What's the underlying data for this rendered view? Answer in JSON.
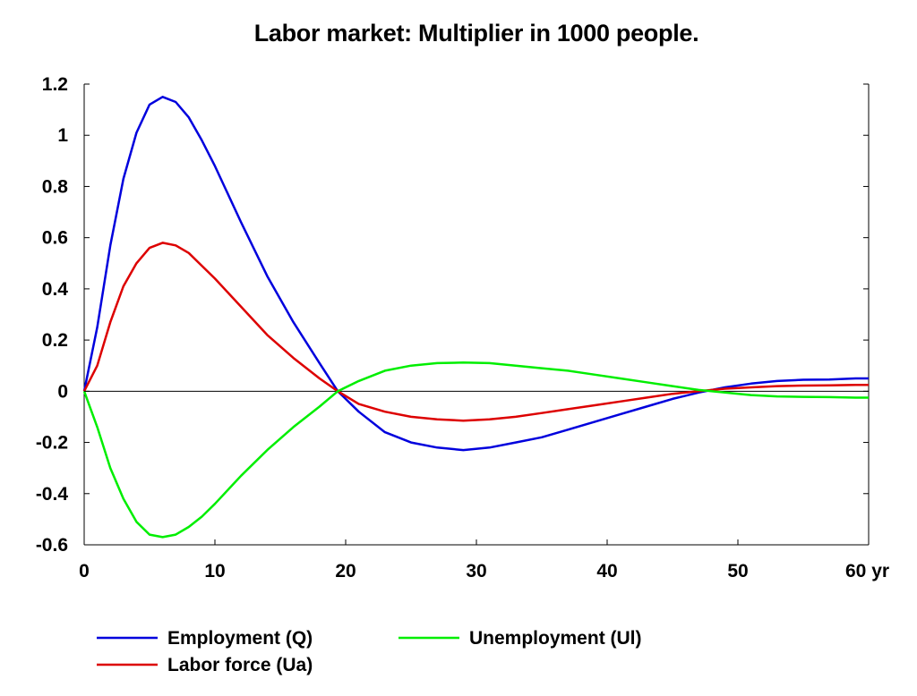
{
  "chart_data": {
    "type": "line",
    "title": "Labor market: Multiplier in 1000 people.",
    "xlabel": "",
    "ylabel": "",
    "x_unit_label": "yr",
    "xlim": [
      0,
      60
    ],
    "ylim": [
      -0.6,
      1.2
    ],
    "x_ticks": [
      0,
      10,
      20,
      30,
      40,
      50,
      60
    ],
    "x_tick_labels": [
      "0",
      "10",
      "20",
      "30",
      "40",
      "50",
      "60 yr"
    ],
    "y_ticks": [
      -0.6,
      -0.4,
      -0.2,
      0,
      0.2,
      0.4,
      0.6,
      0.8,
      1.0,
      1.2
    ],
    "y_tick_labels": [
      "-0.6",
      "-0.4",
      "-0.2",
      "0",
      "0.2",
      "0.4",
      "0.6",
      "0.8",
      "1",
      "1.2"
    ],
    "grid": false,
    "zero_line": true,
    "legend_position": "bottom",
    "series": [
      {
        "name": "Employment (Q)",
        "color": "#0000dd",
        "x": [
          0,
          1,
          2,
          3,
          4,
          5,
          6,
          7,
          8,
          9,
          10,
          12,
          14,
          16,
          18,
          19.4,
          21,
          23,
          25,
          27,
          29,
          31,
          33,
          35,
          37,
          39,
          41,
          43,
          45,
          47,
          49,
          51,
          53,
          55,
          57,
          59,
          60
        ],
        "values": [
          0,
          0.25,
          0.57,
          0.83,
          1.01,
          1.12,
          1.15,
          1.13,
          1.07,
          0.98,
          0.88,
          0.66,
          0.45,
          0.27,
          0.11,
          0.0,
          -0.08,
          -0.16,
          -0.2,
          -0.22,
          -0.23,
          -0.22,
          -0.2,
          -0.18,
          -0.15,
          -0.12,
          -0.09,
          -0.06,
          -0.03,
          -0.005,
          0.015,
          0.03,
          0.04,
          0.045,
          0.046,
          0.05,
          0.05
        ]
      },
      {
        "name": "Labor force (Ua)",
        "color": "#dd0000",
        "x": [
          0,
          1,
          2,
          3,
          4,
          5,
          6,
          7,
          8,
          9,
          10,
          12,
          14,
          16,
          18,
          19.4,
          21,
          23,
          25,
          27,
          29,
          31,
          33,
          35,
          37,
          39,
          41,
          43,
          45,
          47,
          49,
          51,
          53,
          55,
          57,
          59,
          60
        ],
        "values": [
          0,
          0.1,
          0.27,
          0.41,
          0.5,
          0.56,
          0.58,
          0.57,
          0.54,
          0.49,
          0.44,
          0.33,
          0.22,
          0.13,
          0.05,
          0.0,
          -0.05,
          -0.08,
          -0.1,
          -0.11,
          -0.115,
          -0.11,
          -0.1,
          -0.085,
          -0.07,
          -0.055,
          -0.04,
          -0.025,
          -0.01,
          0.0,
          0.01,
          0.015,
          0.02,
          0.022,
          0.023,
          0.025,
          0.025
        ]
      },
      {
        "name": "Unemployment (Ul)",
        "color": "#00ee00",
        "x": [
          0,
          1,
          2,
          3,
          4,
          5,
          6,
          7,
          8,
          9,
          10,
          12,
          14,
          16,
          18,
          19.4,
          21,
          23,
          25,
          27,
          29,
          31,
          33,
          35,
          37,
          39,
          41,
          43,
          45,
          47,
          49,
          51,
          53,
          55,
          57,
          59,
          60
        ],
        "values": [
          0,
          -0.14,
          -0.3,
          -0.42,
          -0.51,
          -0.56,
          -0.57,
          -0.56,
          -0.53,
          -0.49,
          -0.44,
          -0.33,
          -0.23,
          -0.14,
          -0.06,
          0.0,
          0.04,
          0.08,
          0.1,
          0.11,
          0.112,
          0.11,
          0.1,
          0.09,
          0.08,
          0.065,
          0.05,
          0.035,
          0.02,
          0.005,
          -0.005,
          -0.015,
          -0.02,
          -0.022,
          -0.023,
          -0.025,
          -0.025
        ]
      }
    ],
    "legend": [
      {
        "label": "Employment (Q)",
        "color": "#0000dd"
      },
      {
        "label": "Labor force (Ua)",
        "color": "#dd0000"
      },
      {
        "label": "Unemployment (Ul)",
        "color": "#00ee00"
      }
    ]
  }
}
